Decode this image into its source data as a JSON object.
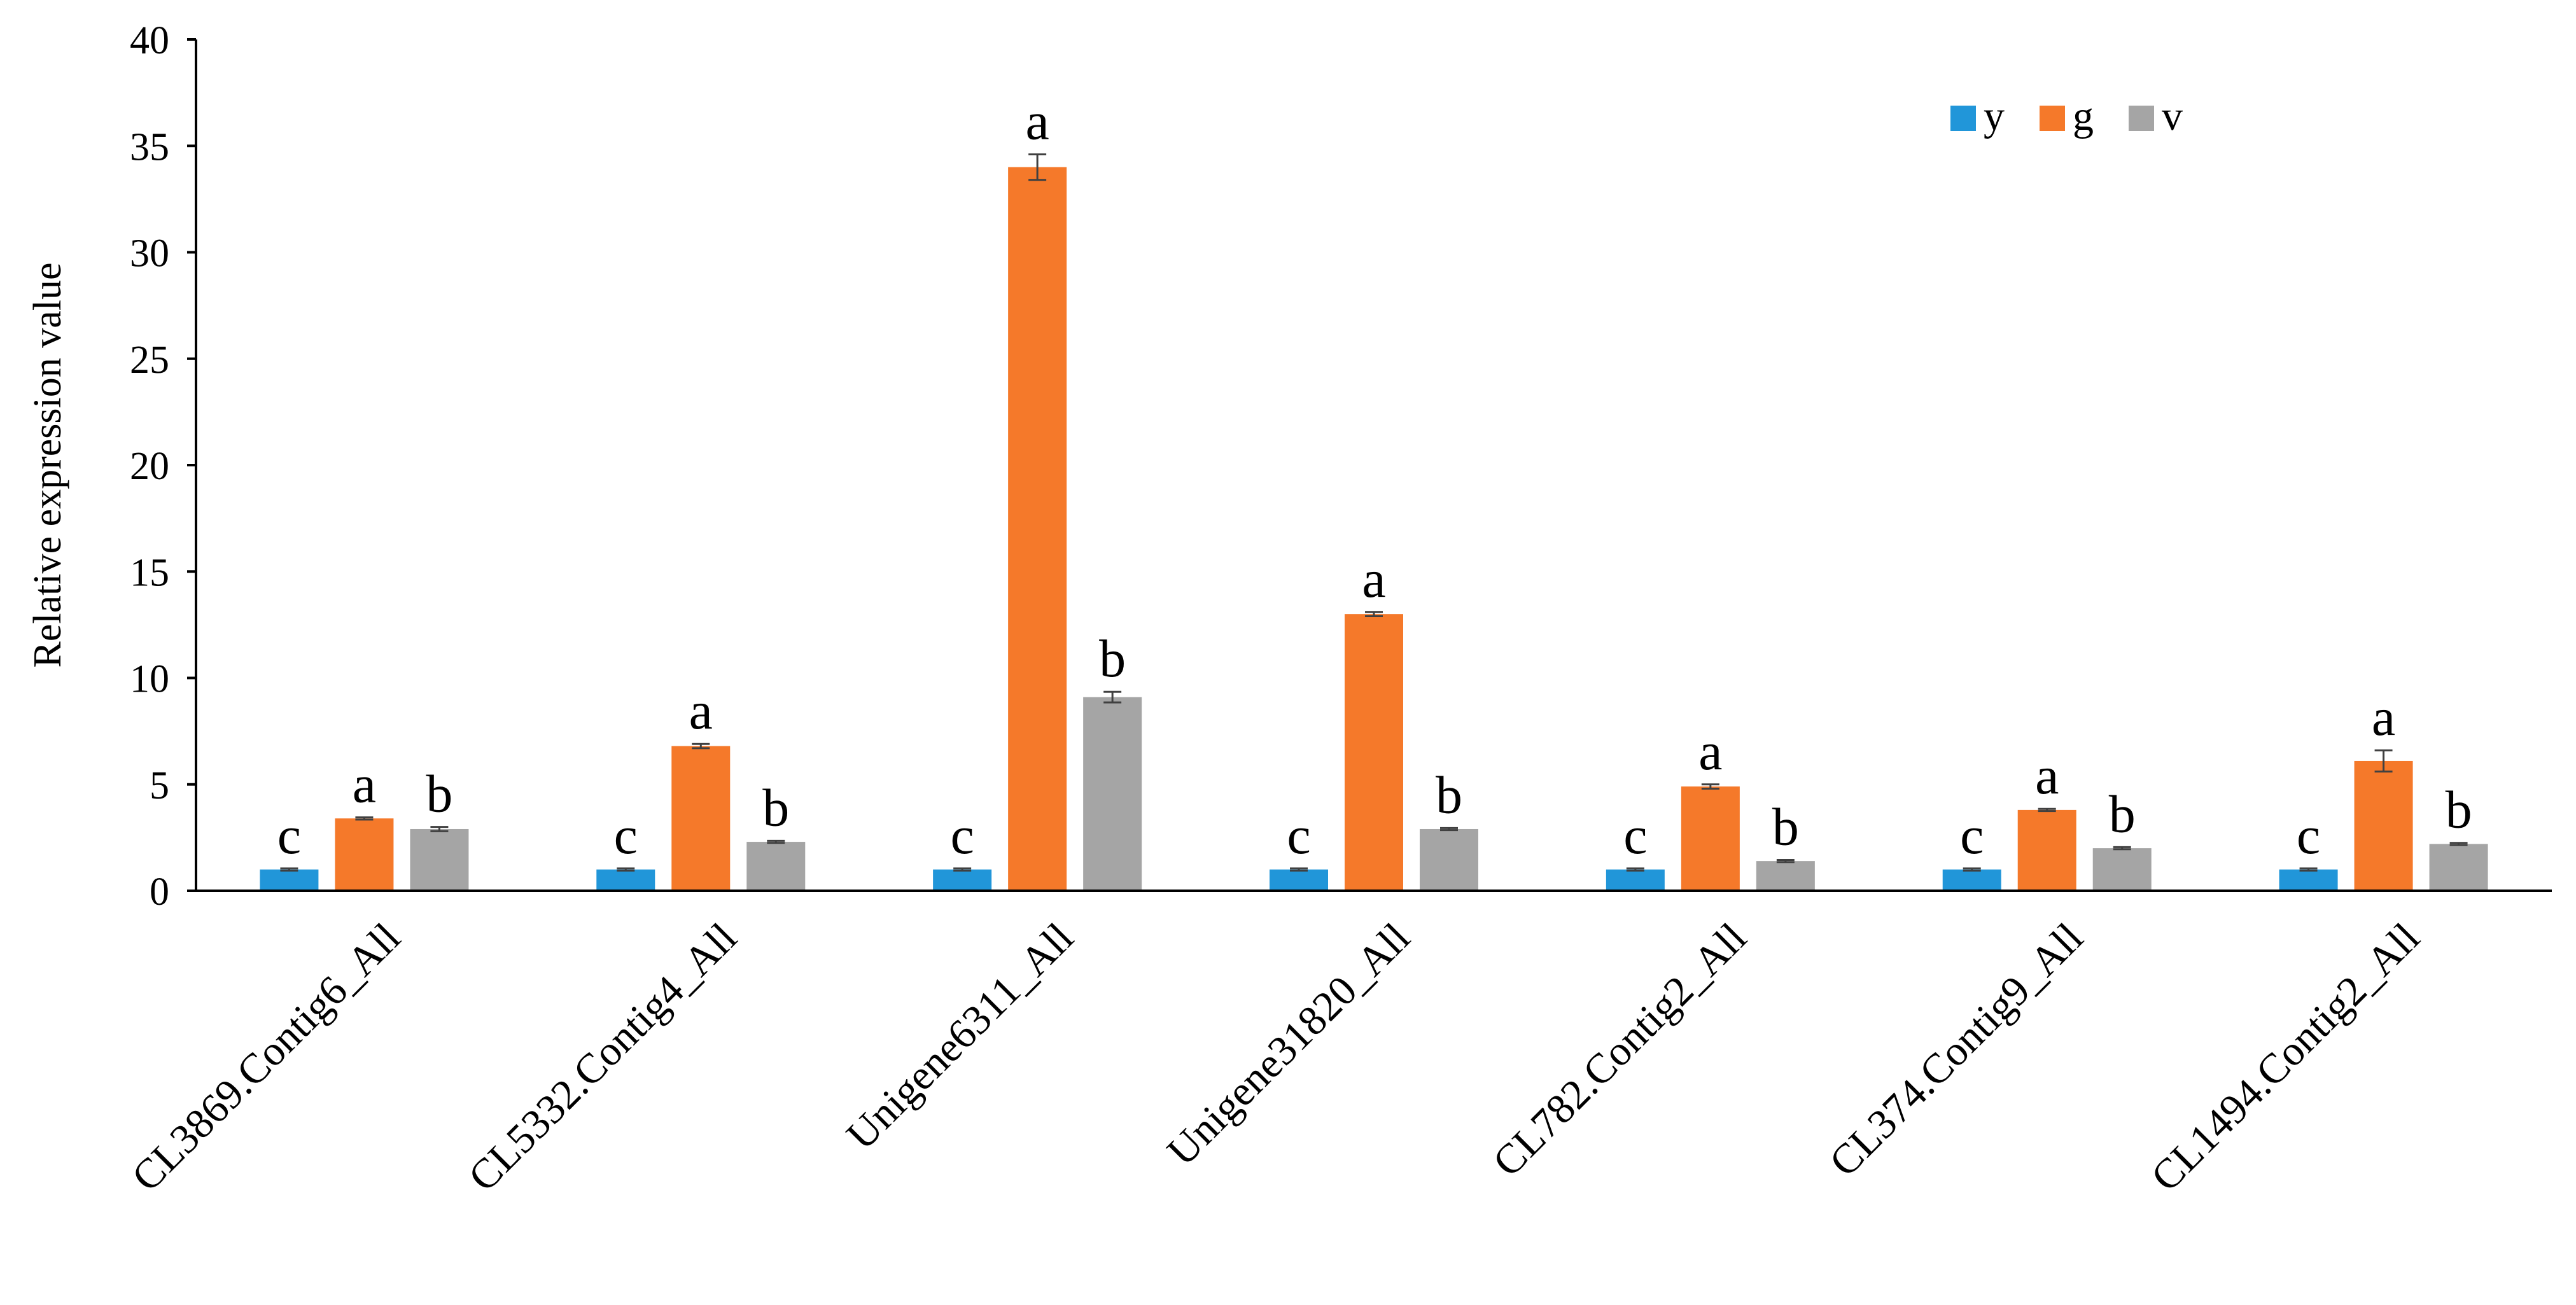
{
  "chart_data": {
    "type": "bar",
    "title": "",
    "xlabel": "",
    "ylabel": "Relative expression value",
    "ylim": [
      0,
      40
    ],
    "yticks": [
      0,
      5,
      10,
      15,
      20,
      25,
      30,
      35,
      40
    ],
    "grid": false,
    "legend_position": "top-right",
    "categories": [
      "CL3869.Contig6_All",
      "CL5332.Contig4_All",
      "Unigene6311_All",
      "Unigene31820_All",
      "CL782.Contig2_All",
      "CL374.Contig9_All",
      "CL1494.Contig2_All"
    ],
    "series": [
      {
        "name": "y",
        "color": "#2196d9",
        "values": [
          1.0,
          1.0,
          1.0,
          1.0,
          1.0,
          1.0,
          1.0
        ],
        "errors": [
          0.05,
          0.05,
          0.05,
          0.05,
          0.05,
          0.05,
          0.05
        ],
        "labels": [
          "c",
          "c",
          "c",
          "c",
          "c",
          "c",
          "c"
        ]
      },
      {
        "name": "g",
        "color": "#f5792a",
        "values": [
          3.4,
          6.8,
          34.0,
          13.0,
          4.9,
          3.8,
          6.1
        ],
        "errors": [
          0.05,
          0.1,
          0.6,
          0.1,
          0.1,
          0.05,
          0.5
        ],
        "labels": [
          "a",
          "a",
          "a",
          "a",
          "a",
          "a",
          "a"
        ]
      },
      {
        "name": "v",
        "color": "#a5a5a5",
        "values": [
          2.9,
          2.3,
          9.1,
          2.9,
          1.4,
          2.0,
          2.2
        ],
        "errors": [
          0.1,
          0.05,
          0.25,
          0.05,
          0.05,
          0.05,
          0.05
        ],
        "labels": [
          "b",
          "b",
          "b",
          "b",
          "b",
          "b",
          "b"
        ]
      }
    ]
  }
}
